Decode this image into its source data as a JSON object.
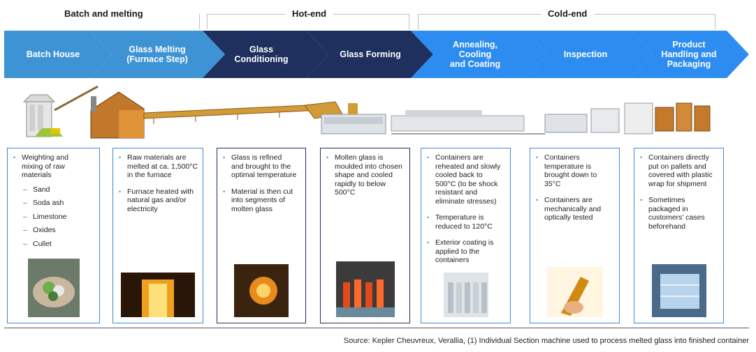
{
  "phases": [
    {
      "label": "Batch and melting"
    },
    {
      "label": "Hot-end"
    },
    {
      "label": "Cold-end"
    }
  ],
  "steps": [
    {
      "label": "Batch House",
      "color": "#3e93d5"
    },
    {
      "label": "Glass Melting\n(Furnace Step)",
      "color": "#3e93d5"
    },
    {
      "label": "Glass\nConditioning",
      "color": "#1f2f5e"
    },
    {
      "label": "Glass  Forming",
      "color": "#1f2f5e"
    },
    {
      "label": "Annealing,\nCooling\nand Coating",
      "color": "#2c8cf0"
    },
    {
      "label": "Inspection",
      "color": "#2c8cf0"
    },
    {
      "label": "Product\nHandling and\nPackaging",
      "color": "#2c8cf0"
    }
  ],
  "cards": [
    {
      "bullets": [
        "Weighting and\nmixing of raw\nmaterials"
      ],
      "subitems": [
        "Sand",
        "Soda ash",
        "Limestone",
        "Oxides",
        "Cullet"
      ],
      "photo": "cullet-in-hand-photo"
    },
    {
      "bullets": [
        "Raw materials are\nmelted at ca. 1,500°C\nin the furnace",
        "Furnace heated with\nnatural gas and/or\nelectricity"
      ],
      "photo": "furnace-photo"
    },
    {
      "bullets": [
        "Glass is refined\nand brought to the\noptimal temperature",
        "Material is then cut\ninto segments of\nmolten glass"
      ],
      "photo": "molten-glass-photo"
    },
    {
      "bullets": [
        "Molten glass is\nmoulded into chosen\nshape and cooled\nrapidly to below\n500°C"
      ],
      "photo": "forming-machine-photo"
    },
    {
      "bullets": [
        "Containers are\nreheated and slowly\ncooled back to\n500°C (to be shock\nresistant and\neliminate stresses)",
        "Temperature is\nreduced to 120°C",
        "Exterior coating is\napplied to the\ncontainers"
      ],
      "photo": "bottles-line-photo"
    },
    {
      "bullets": [
        "Containers\ntemperature is\nbrought down to\n35°C",
        "Containers are\nmechanically and\noptically tested"
      ],
      "photo": "bottle-inspection-photo"
    },
    {
      "bullets": [
        "Containers directly\nput on pallets and\ncovered with plastic\nwrap for shipment",
        "Sometimes\npackaged in\ncustomers’ cases\nbeforehand"
      ],
      "photo": "pallet-wrap-photo"
    }
  ],
  "footer": {
    "source": "Source: Kepler Cheuvreux, Verallia, (1) Individual Section machine used to process melted glass into finished container"
  }
}
